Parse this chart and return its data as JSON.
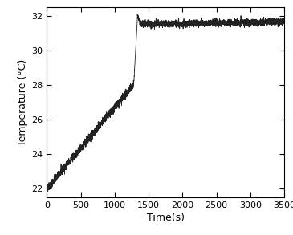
{
  "xlabel": "Time(s)",
  "ylabel": "Temperature (°C)",
  "xlim": [
    0,
    3500
  ],
  "ylim": [
    21.5,
    32.5
  ],
  "xticks": [
    0,
    500,
    1000,
    1500,
    2000,
    2500,
    3000,
    3500
  ],
  "yticks": [
    22,
    24,
    26,
    28,
    30,
    32
  ],
  "line_color": "#222222",
  "line_width": 0.6,
  "bg_color": "#ffffff",
  "phase1_t_start": 0,
  "phase1_t_end": 1280,
  "phase1_T_start": 22.0,
  "phase1_T_end": 28.0,
  "jump_t_start": 1280,
  "jump_t_end": 1370,
  "jump_T_start": 28.0,
  "jump_T_peak": 31.7,
  "jump_T_end": 31.5,
  "phase2_t_start": 1370,
  "phase2_t_end": 3520,
  "phase2_T_mean": 31.5,
  "noise_amplitude_phase1": 0.12,
  "noise_amplitude_phase2": 0.1,
  "noise_amplitude_jump": 0.05,
  "figsize": [
    3.65,
    2.93
  ],
  "dpi": 100
}
